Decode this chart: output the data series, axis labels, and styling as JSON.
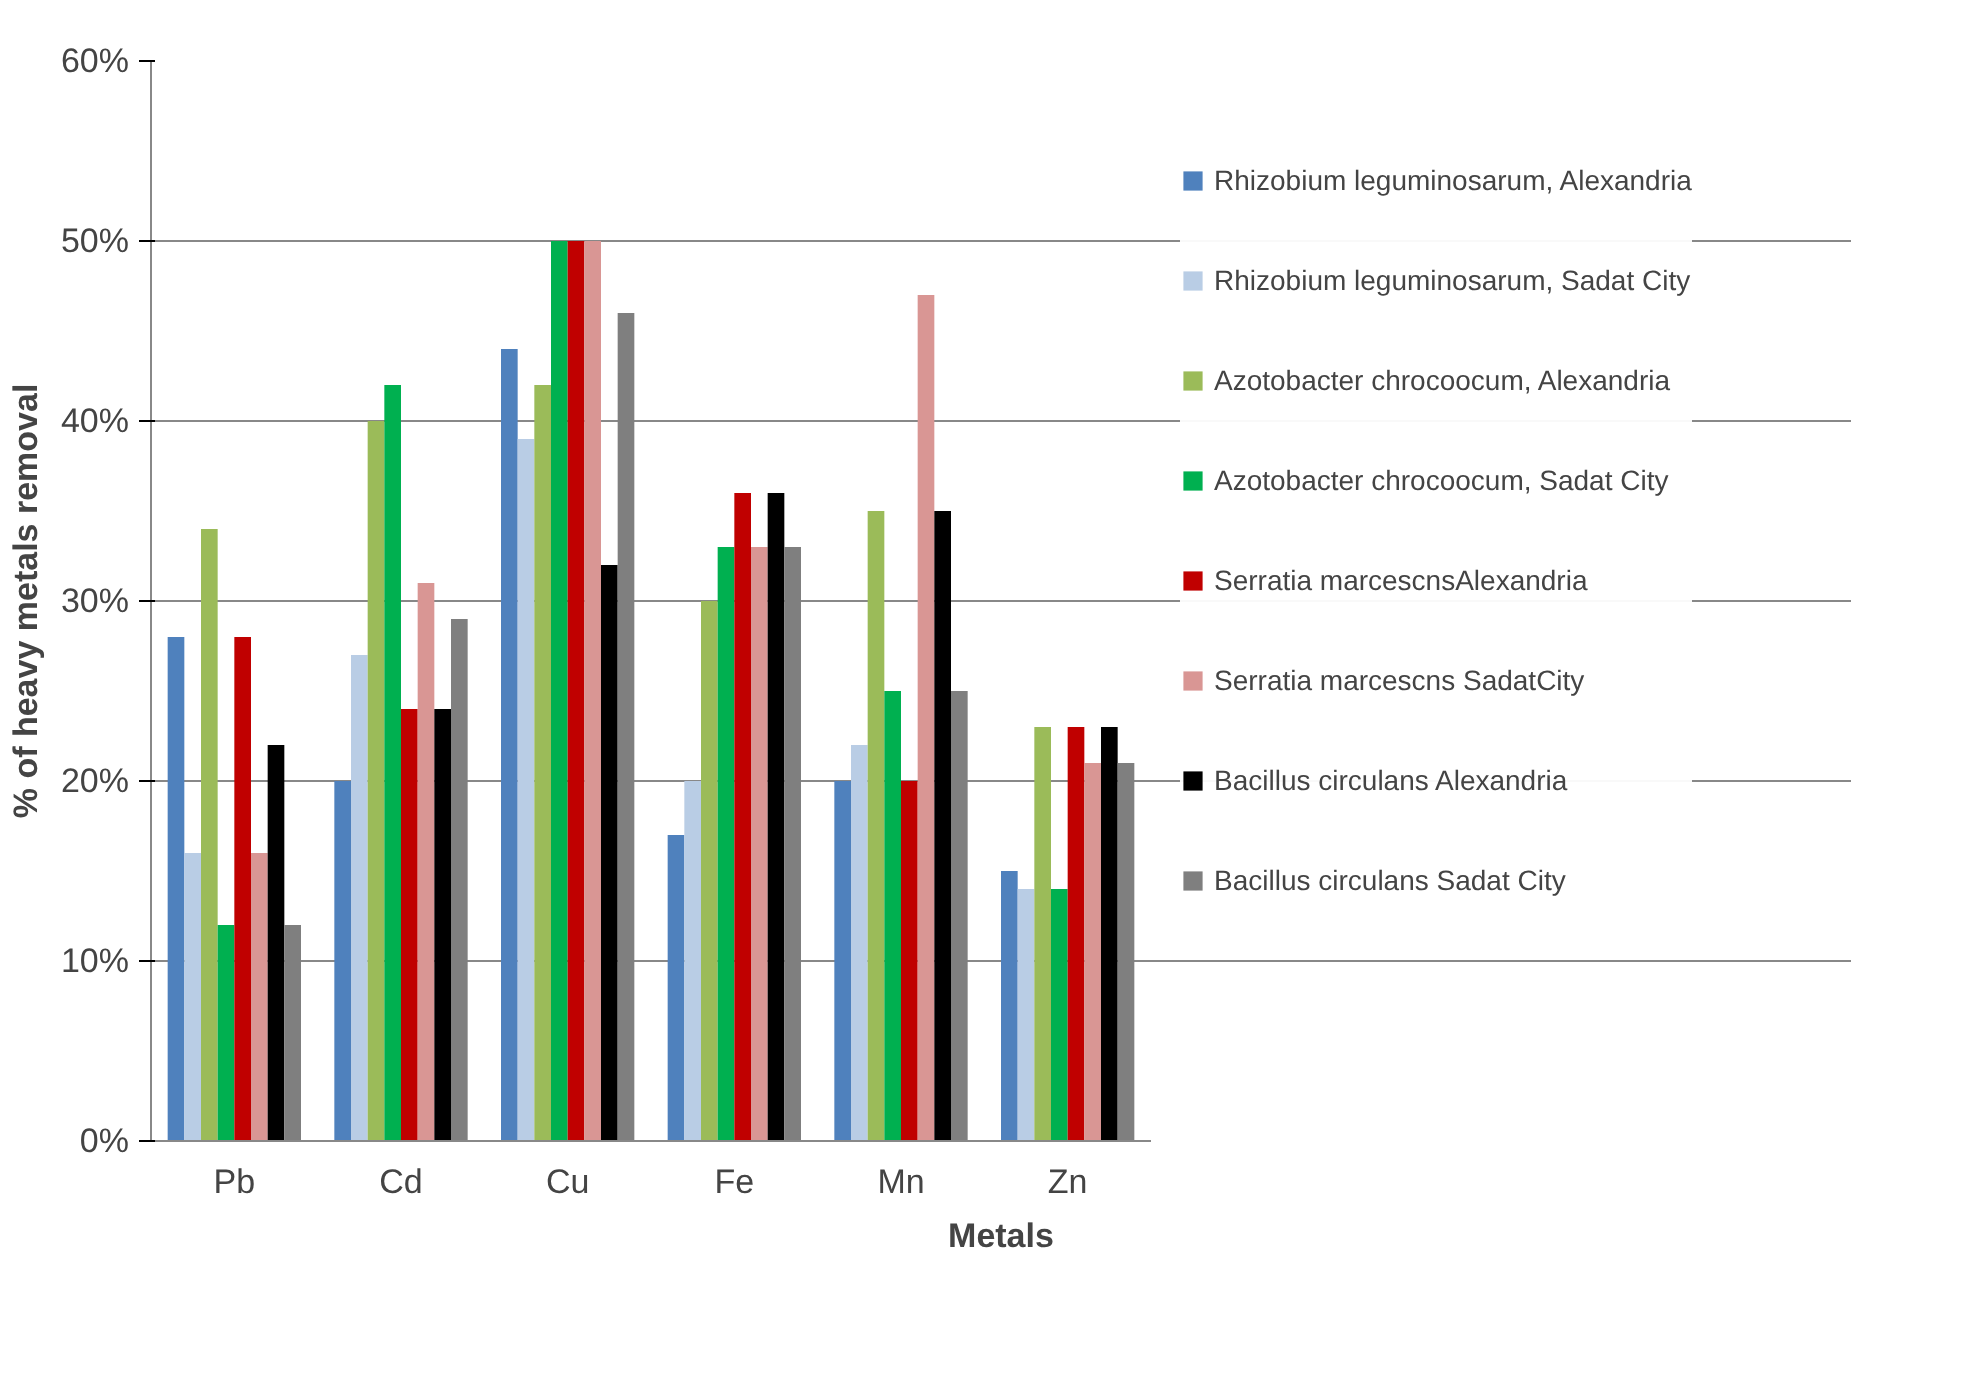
{
  "chart_data": {
    "type": "bar",
    "xlabel": "Metals",
    "ylabel": "% of heavy metals removal",
    "categories": [
      "Pb",
      "Cd",
      "Cu",
      "Fe",
      "Mn",
      "Zn"
    ],
    "ylim": [
      0,
      60
    ],
    "yticks": [
      {
        "value": 0,
        "label": "0%"
      },
      {
        "value": 10,
        "label": "10%"
      },
      {
        "value": 20,
        "label": "20%"
      },
      {
        "value": 30,
        "label": "30%"
      },
      {
        "value": 40,
        "label": "40%"
      },
      {
        "value": 50,
        "label": "50%"
      },
      {
        "value": 60,
        "label": "60%"
      }
    ],
    "grid": "y",
    "legend": "right",
    "series": [
      {
        "name": "Rhizobium leguminosarum, Alexandria",
        "color": "#4f81bd",
        "values": [
          28,
          20,
          44,
          17,
          20,
          15
        ]
      },
      {
        "name": "Rhizobium leguminosarum, Sadat City",
        "color": "#b9cde5",
        "values": [
          16,
          27,
          39,
          20,
          22,
          14
        ]
      },
      {
        "name": "Azotobacter chrocoocum, Alexandria",
        "color": "#9bbb59",
        "values": [
          34,
          40,
          42,
          30,
          35,
          23
        ]
      },
      {
        "name": "Azotobacter chrocoocum, Sadat City",
        "color": "#00b050",
        "values": [
          12,
          42,
          50,
          33,
          25,
          14
        ]
      },
      {
        "name": "Serratia marcescnsAlexandria",
        "color": "#c00000",
        "values": [
          28,
          24,
          50,
          36,
          20,
          23
        ]
      },
      {
        "name": "Serratia marcescns SadatCity",
        "color": "#d99694",
        "values": [
          16,
          31,
          50,
          33,
          47,
          21
        ]
      },
      {
        "name": "Bacillus circulans Alexandria",
        "color": "#000000",
        "values": [
          22,
          24,
          32,
          36,
          35,
          23
        ]
      },
      {
        "name": "Bacillus circulans Sadat City",
        "color": "#7f7f7f",
        "values": [
          12,
          29,
          46,
          33,
          25,
          21
        ]
      }
    ]
  }
}
